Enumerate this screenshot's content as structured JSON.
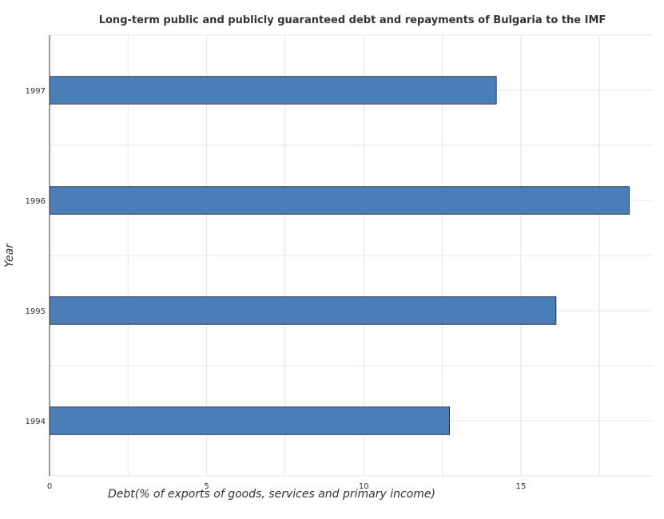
{
  "chart_data": {
    "type": "bar",
    "orientation": "horizontal",
    "title": "Long-term public and publicly guaranteed debt and repayments of Bulgaria to the IMF",
    "xlabel": "Debt(% of exports of goods, services and primary income)",
    "ylabel": "Year",
    "categories": [
      "1994",
      "1995",
      "1996",
      "1997"
    ],
    "values": [
      12.73,
      16.12,
      18.45,
      14.22
    ],
    "xlim": [
      0,
      19.2
    ],
    "xticks": [
      0,
      5,
      10,
      15
    ],
    "grid": true,
    "bar_color": "#4a7eb8"
  }
}
